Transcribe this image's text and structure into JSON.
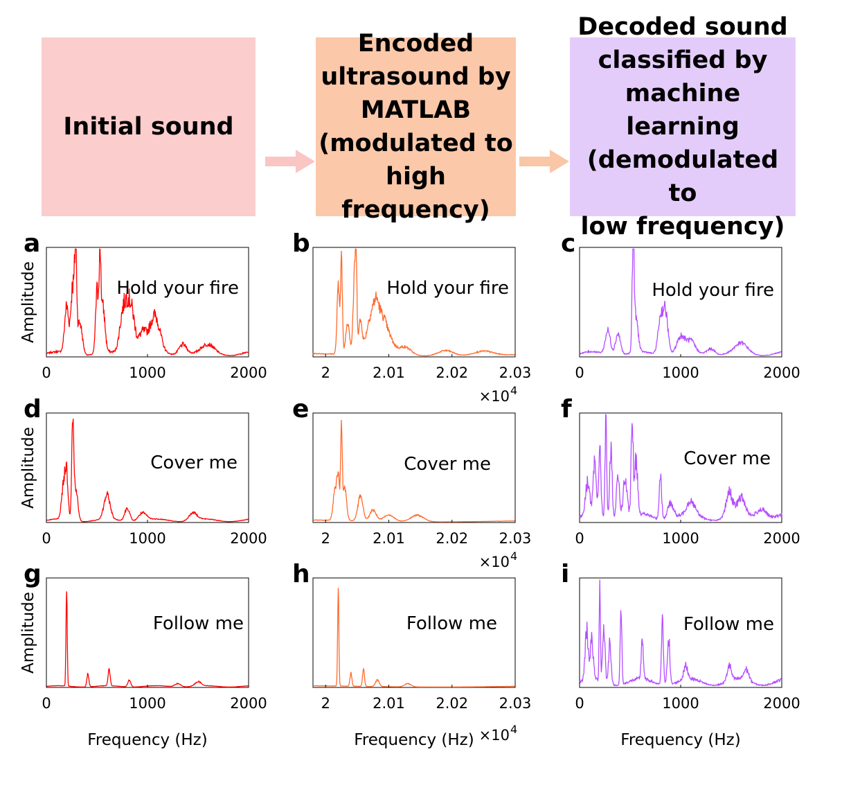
{
  "headers": {
    "initial": "Initial sound",
    "encoded": "Encoded\nultrasound by\nMATLAB\n(modulated to\nhigh frequency)",
    "decoded": "Decoded sound\nclassified by\nmachine learning\n(demodulated to\nlow frequency)"
  },
  "colors": {
    "initial_box": "#fbcdcd",
    "encoded_box": "#fbc8a9",
    "decoded_box": "#e4ccfa",
    "arrow_1": "#f9c6c3",
    "arrow_2": "#f9c6a6",
    "initial_line": "#ff0000",
    "encoded_line": "#ff6a2e",
    "decoded_line": "#b44dff"
  },
  "xlabel": "Frequency (Hz)",
  "ylabel": "Amplitude",
  "exponent_label": "×10",
  "exponent_power": "4",
  "chart_data": [
    {
      "panel": "a",
      "type": "line",
      "phrase": "Hold your fire",
      "series_color": "#ff0000",
      "xlim": [
        0,
        2000
      ],
      "xticks": [
        "0",
        "1000",
        "2000"
      ],
      "xtick_values": [
        0,
        1000,
        2000
      ],
      "ylabel": "Amplitude",
      "peaks": [
        [
          200,
          0.42,
          20
        ],
        [
          260,
          0.62,
          18
        ],
        [
          290,
          0.85,
          10
        ],
        [
          330,
          0.3,
          25
        ],
        [
          500,
          0.55,
          14
        ],
        [
          530,
          0.8,
          10
        ],
        [
          560,
          0.4,
          20
        ],
        [
          750,
          0.3,
          30
        ],
        [
          800,
          0.38,
          30
        ],
        [
          850,
          0.32,
          30
        ],
        [
          950,
          0.2,
          40
        ],
        [
          1050,
          0.22,
          40
        ],
        [
          1100,
          0.18,
          40
        ],
        [
          1350,
          0.1,
          40
        ],
        [
          1600,
          0.07,
          60
        ]
      ],
      "noise": 0.35,
      "base": 0.03
    },
    {
      "panel": "b",
      "type": "line",
      "phrase": "Hold your fire",
      "series_color": "#ff6a2e",
      "xlim": [
        19980,
        20300
      ],
      "xticks": [
        "2",
        "2.01",
        "2.02",
        "2.03"
      ],
      "xtick_values": [
        20000,
        20100,
        20200,
        20300
      ],
      "exponent": 4,
      "peaks": [
        [
          20020,
          0.6,
          2
        ],
        [
          20025,
          0.86,
          1.5
        ],
        [
          20035,
          0.3,
          3
        ],
        [
          20045,
          0.55,
          2
        ],
        [
          20048,
          0.83,
          1.5
        ],
        [
          20055,
          0.3,
          3
        ],
        [
          20070,
          0.3,
          6
        ],
        [
          20080,
          0.38,
          5
        ],
        [
          20090,
          0.25,
          6
        ],
        [
          20100,
          0.15,
          8
        ],
        [
          20125,
          0.08,
          10
        ],
        [
          20190,
          0.05,
          12
        ],
        [
          20250,
          0.04,
          15
        ]
      ],
      "noise": 0.25,
      "base": 0.02
    },
    {
      "panel": "c",
      "type": "line",
      "phrase": "Hold your fire",
      "series_color": "#b44dff",
      "xlim": [
        0,
        2000
      ],
      "xticks": [
        "0",
        "1000",
        "2000"
      ],
      "xtick_values": [
        0,
        1000,
        2000
      ],
      "peaks": [
        [
          280,
          0.22,
          25
        ],
        [
          380,
          0.2,
          25
        ],
        [
          530,
          0.98,
          10
        ],
        [
          560,
          0.3,
          20
        ],
        [
          800,
          0.32,
          25
        ],
        [
          850,
          0.38,
          25
        ],
        [
          1000,
          0.15,
          40
        ],
        [
          1100,
          0.1,
          40
        ],
        [
          1300,
          0.06,
          40
        ],
        [
          1600,
          0.08,
          60
        ]
      ],
      "noise": 0.3,
      "base": 0.03
    },
    {
      "panel": "d",
      "type": "line",
      "phrase": "Cover me",
      "series_color": "#ff0000",
      "xlim": [
        0,
        2000
      ],
      "xticks": [
        "0",
        "1000",
        "2000"
      ],
      "xtick_values": [
        0,
        1000,
        2000
      ],
      "ylabel": "Amplitude",
      "peaks": [
        [
          170,
          0.3,
          20
        ],
        [
          200,
          0.38,
          15
        ],
        [
          260,
          0.85,
          10
        ],
        [
          290,
          0.3,
          20
        ],
        [
          600,
          0.22,
          30
        ],
        [
          800,
          0.12,
          25
        ],
        [
          950,
          0.07,
          40
        ],
        [
          1450,
          0.07,
          40
        ]
      ],
      "noise": 0.25,
      "base": 0.02
    },
    {
      "panel": "e",
      "type": "line",
      "phrase": "Cover me",
      "series_color": "#ff6a2e",
      "xlim": [
        19980,
        20300
      ],
      "xticks": [
        "2",
        "2.01",
        "2.02",
        "2.03"
      ],
      "xtick_values": [
        20000,
        20100,
        20200,
        20300
      ],
      "exponent": 4,
      "peaks": [
        [
          20015,
          0.28,
          3
        ],
        [
          20020,
          0.36,
          2
        ],
        [
          20025,
          0.85,
          1.2
        ],
        [
          20030,
          0.3,
          3
        ],
        [
          20055,
          0.22,
          4
        ],
        [
          20075,
          0.1,
          5
        ],
        [
          20100,
          0.06,
          8
        ],
        [
          20145,
          0.06,
          10
        ]
      ],
      "noise": 0.2,
      "base": 0.015
    },
    {
      "panel": "f",
      "type": "line",
      "phrase": "Cover me",
      "series_color": "#b44dff",
      "xlim": [
        0,
        2000
      ],
      "xticks": [
        "0",
        "1000",
        "2000"
      ],
      "xtick_values": [
        0,
        1000,
        2000
      ],
      "peaks": [
        [
          80,
          0.3,
          20
        ],
        [
          150,
          0.45,
          15
        ],
        [
          200,
          0.55,
          12
        ],
        [
          260,
          0.98,
          8
        ],
        [
          310,
          0.65,
          12
        ],
        [
          380,
          0.4,
          15
        ],
        [
          450,
          0.35,
          20
        ],
        [
          520,
          0.85,
          10
        ],
        [
          560,
          0.5,
          15
        ],
        [
          800,
          0.42,
          12
        ],
        [
          900,
          0.15,
          30
        ],
        [
          1100,
          0.12,
          40
        ],
        [
          1480,
          0.22,
          30
        ],
        [
          1600,
          0.15,
          40
        ],
        [
          1800,
          0.1,
          50
        ]
      ],
      "noise": 0.4,
      "base": 0.05
    },
    {
      "panel": "g",
      "type": "line",
      "phrase": "Follow me",
      "series_color": "#ff0000",
      "xlim": [
        0,
        2000
      ],
      "xticks": [
        "0",
        "1000",
        "2000"
      ],
      "xtick_values": [
        0,
        1000,
        2000
      ],
      "ylabel": "Amplitude",
      "peaks": [
        [
          200,
          0.92,
          6
        ],
        [
          410,
          0.12,
          10
        ],
        [
          620,
          0.16,
          10
        ],
        [
          820,
          0.06,
          15
        ],
        [
          1300,
          0.03,
          30
        ],
        [
          1500,
          0.04,
          30
        ]
      ],
      "noise": 0.2,
      "base": 0.01
    },
    {
      "panel": "h",
      "type": "line",
      "phrase": "Follow me",
      "series_color": "#ff6a2e",
      "xlim": [
        19980,
        20300
      ],
      "xticks": [
        "2",
        "2.01",
        "2.02",
        "2.03"
      ],
      "xtick_values": [
        20000,
        20100,
        20200,
        20300
      ],
      "exponent": 4,
      "peaks": [
        [
          20020,
          0.92,
          1
        ],
        [
          20040,
          0.12,
          1.5
        ],
        [
          20060,
          0.16,
          1.5
        ],
        [
          20082,
          0.06,
          3
        ],
        [
          20130,
          0.03,
          5
        ]
      ],
      "noise": 0.2,
      "base": 0.01
    },
    {
      "panel": "i",
      "type": "line",
      "phrase": "Follow me",
      "series_color": "#b44dff",
      "xlim": [
        0,
        2000
      ],
      "xticks": [
        "0",
        "1000",
        "2000"
      ],
      "xtick_values": [
        0,
        1000,
        2000
      ],
      "peaks": [
        [
          70,
          0.45,
          15
        ],
        [
          120,
          0.35,
          15
        ],
        [
          200,
          0.98,
          6
        ],
        [
          240,
          0.5,
          12
        ],
        [
          300,
          0.4,
          12
        ],
        [
          410,
          0.68,
          8
        ],
        [
          620,
          0.38,
          10
        ],
        [
          820,
          0.55,
          10
        ],
        [
          880,
          0.45,
          12
        ],
        [
          1050,
          0.12,
          20
        ],
        [
          1480,
          0.14,
          20
        ],
        [
          1650,
          0.1,
          25
        ]
      ],
      "noise": 0.4,
      "base": 0.05
    }
  ]
}
